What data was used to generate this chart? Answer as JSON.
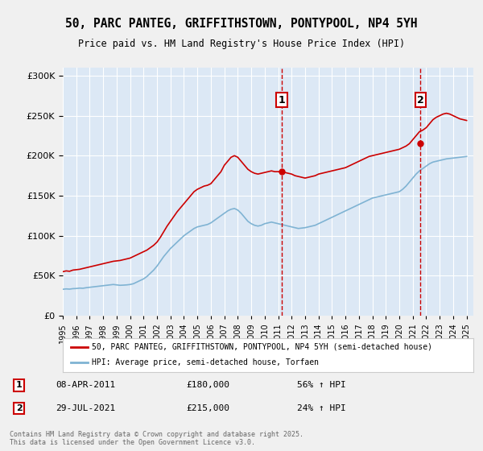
{
  "title": "50, PARC PANTEG, GRIFFITHSTOWN, PONTYPOOL, NP4 5YH",
  "subtitle": "Price paid vs. HM Land Registry's House Price Index (HPI)",
  "ylabel_ticks": [
    "£0",
    "£50K",
    "£100K",
    "£150K",
    "£200K",
    "£250K",
    "£300K"
  ],
  "ytick_values": [
    0,
    50000,
    100000,
    150000,
    200000,
    250000,
    300000
  ],
  "ylim": [
    0,
    310000
  ],
  "xlim_start": 1995,
  "xlim_end": 2025.5,
  "background_color": "#e8f0f8",
  "plot_bg_color": "#dce8f5",
  "grid_color": "#ffffff",
  "red_line_color": "#cc0000",
  "blue_line_color": "#7fb3d3",
  "marker1_date_idx": 16.25,
  "marker2_date_idx": 26.58,
  "marker1_value": 180000,
  "marker2_value": 215000,
  "annotation1_label": "1",
  "annotation2_label": "2",
  "annotation1_date": "08-APR-2011",
  "annotation2_date": "29-JUL-2021",
  "annotation1_pct": "56% ↑ HPI",
  "annotation2_pct": "24% ↑ HPI",
  "legend_red": "50, PARC PANTEG, GRIFFITHSTOWN, PONTYPOOL, NP4 5YH (semi-detached house)",
  "legend_blue": "HPI: Average price, semi-detached house, Torfaen",
  "footer": "Contains HM Land Registry data © Crown copyright and database right 2025.\nThis data is licensed under the Open Government Licence v3.0.",
  "red_data": [
    [
      1995.0,
      55000
    ],
    [
      1995.25,
      56000
    ],
    [
      1995.5,
      55500
    ],
    [
      1995.75,
      57000
    ],
    [
      1996.0,
      57500
    ],
    [
      1996.25,
      58000
    ],
    [
      1996.5,
      59000
    ],
    [
      1996.75,
      60000
    ],
    [
      1997.0,
      61000
    ],
    [
      1997.25,
      62000
    ],
    [
      1997.5,
      63000
    ],
    [
      1997.75,
      64000
    ],
    [
      1998.0,
      65000
    ],
    [
      1998.25,
      66000
    ],
    [
      1998.5,
      67000
    ],
    [
      1998.75,
      68000
    ],
    [
      1999.0,
      68500
    ],
    [
      1999.25,
      69000
    ],
    [
      1999.5,
      70000
    ],
    [
      1999.75,
      71000
    ],
    [
      2000.0,
      72000
    ],
    [
      2000.25,
      74000
    ],
    [
      2000.5,
      76000
    ],
    [
      2000.75,
      78000
    ],
    [
      2001.0,
      80000
    ],
    [
      2001.25,
      82000
    ],
    [
      2001.5,
      85000
    ],
    [
      2001.75,
      88000
    ],
    [
      2002.0,
      92000
    ],
    [
      2002.25,
      98000
    ],
    [
      2002.5,
      105000
    ],
    [
      2002.75,
      112000
    ],
    [
      2003.0,
      118000
    ],
    [
      2003.25,
      124000
    ],
    [
      2003.5,
      130000
    ],
    [
      2003.75,
      135000
    ],
    [
      2004.0,
      140000
    ],
    [
      2004.25,
      145000
    ],
    [
      2004.5,
      150000
    ],
    [
      2004.75,
      155000
    ],
    [
      2005.0,
      158000
    ],
    [
      2005.25,
      160000
    ],
    [
      2005.5,
      162000
    ],
    [
      2005.75,
      163000
    ],
    [
      2006.0,
      165000
    ],
    [
      2006.25,
      170000
    ],
    [
      2006.5,
      175000
    ],
    [
      2006.75,
      180000
    ],
    [
      2007.0,
      188000
    ],
    [
      2007.25,
      193000
    ],
    [
      2007.5,
      198000
    ],
    [
      2007.75,
      200000
    ],
    [
      2008.0,
      198000
    ],
    [
      2008.25,
      193000
    ],
    [
      2008.5,
      188000
    ],
    [
      2008.75,
      183000
    ],
    [
      2009.0,
      180000
    ],
    [
      2009.25,
      178000
    ],
    [
      2009.5,
      177000
    ],
    [
      2009.75,
      178000
    ],
    [
      2010.0,
      179000
    ],
    [
      2010.25,
      180000
    ],
    [
      2010.5,
      181000
    ],
    [
      2010.75,
      180000
    ],
    [
      2011.25,
      180000
    ],
    [
      2011.5,
      179000
    ],
    [
      2011.75,
      178000
    ],
    [
      2012.0,
      177000
    ],
    [
      2012.25,
      175000
    ],
    [
      2012.5,
      174000
    ],
    [
      2012.75,
      173000
    ],
    [
      2013.0,
      172000
    ],
    [
      2013.25,
      173000
    ],
    [
      2013.5,
      174000
    ],
    [
      2013.75,
      175000
    ],
    [
      2014.0,
      177000
    ],
    [
      2014.25,
      178000
    ],
    [
      2014.5,
      179000
    ],
    [
      2014.75,
      180000
    ],
    [
      2015.0,
      181000
    ],
    [
      2015.25,
      182000
    ],
    [
      2015.5,
      183000
    ],
    [
      2015.75,
      184000
    ],
    [
      2016.0,
      185000
    ],
    [
      2016.25,
      187000
    ],
    [
      2016.5,
      189000
    ],
    [
      2016.75,
      191000
    ],
    [
      2017.0,
      193000
    ],
    [
      2017.25,
      195000
    ],
    [
      2017.5,
      197000
    ],
    [
      2017.75,
      199000
    ],
    [
      2018.0,
      200000
    ],
    [
      2018.25,
      201000
    ],
    [
      2018.5,
      202000
    ],
    [
      2018.75,
      203000
    ],
    [
      2019.0,
      204000
    ],
    [
      2019.25,
      205000
    ],
    [
      2019.5,
      206000
    ],
    [
      2019.75,
      207000
    ],
    [
      2020.0,
      208000
    ],
    [
      2020.25,
      210000
    ],
    [
      2020.5,
      212000
    ],
    [
      2020.75,
      215000
    ],
    [
      2021.0,
      220000
    ],
    [
      2021.25,
      225000
    ],
    [
      2021.5,
      230000
    ],
    [
      2021.75,
      232000
    ],
    [
      2022.0,
      235000
    ],
    [
      2022.25,
      240000
    ],
    [
      2022.5,
      245000
    ],
    [
      2022.75,
      248000
    ],
    [
      2023.0,
      250000
    ],
    [
      2023.25,
      252000
    ],
    [
      2023.5,
      253000
    ],
    [
      2023.75,
      252000
    ],
    [
      2024.0,
      250000
    ],
    [
      2024.25,
      248000
    ],
    [
      2024.5,
      246000
    ],
    [
      2024.75,
      245000
    ],
    [
      2025.0,
      244000
    ]
  ],
  "blue_data": [
    [
      1995.0,
      33000
    ],
    [
      1995.25,
      33500
    ],
    [
      1995.5,
      33200
    ],
    [
      1995.75,
      33800
    ],
    [
      1996.0,
      34000
    ],
    [
      1996.25,
      34500
    ],
    [
      1996.5,
      34300
    ],
    [
      1996.75,
      35000
    ],
    [
      1997.0,
      35500
    ],
    [
      1997.25,
      36000
    ],
    [
      1997.5,
      36500
    ],
    [
      1997.75,
      37000
    ],
    [
      1998.0,
      37500
    ],
    [
      1998.25,
      38000
    ],
    [
      1998.5,
      38500
    ],
    [
      1998.75,
      39000
    ],
    [
      1999.0,
      38500
    ],
    [
      1999.25,
      38000
    ],
    [
      1999.5,
      38200
    ],
    [
      1999.75,
      38500
    ],
    [
      2000.0,
      39000
    ],
    [
      2000.25,
      40000
    ],
    [
      2000.5,
      42000
    ],
    [
      2000.75,
      44000
    ],
    [
      2001.0,
      46000
    ],
    [
      2001.25,
      49000
    ],
    [
      2001.5,
      53000
    ],
    [
      2001.75,
      57000
    ],
    [
      2002.0,
      62000
    ],
    [
      2002.25,
      68000
    ],
    [
      2002.5,
      74000
    ],
    [
      2002.75,
      79000
    ],
    [
      2003.0,
      84000
    ],
    [
      2003.25,
      88000
    ],
    [
      2003.5,
      92000
    ],
    [
      2003.75,
      96000
    ],
    [
      2004.0,
      100000
    ],
    [
      2004.25,
      103000
    ],
    [
      2004.5,
      106000
    ],
    [
      2004.75,
      109000
    ],
    [
      2005.0,
      111000
    ],
    [
      2005.25,
      112000
    ],
    [
      2005.5,
      113000
    ],
    [
      2005.75,
      114000
    ],
    [
      2006.0,
      116000
    ],
    [
      2006.25,
      119000
    ],
    [
      2006.5,
      122000
    ],
    [
      2006.75,
      125000
    ],
    [
      2007.0,
      128000
    ],
    [
      2007.25,
      131000
    ],
    [
      2007.5,
      133000
    ],
    [
      2007.75,
      134000
    ],
    [
      2008.0,
      132000
    ],
    [
      2008.25,
      128000
    ],
    [
      2008.5,
      123000
    ],
    [
      2008.75,
      118000
    ],
    [
      2009.0,
      115000
    ],
    [
      2009.25,
      113000
    ],
    [
      2009.5,
      112000
    ],
    [
      2009.75,
      113000
    ],
    [
      2010.0,
      115000
    ],
    [
      2010.25,
      116000
    ],
    [
      2010.5,
      117000
    ],
    [
      2010.75,
      116000
    ],
    [
      2011.0,
      115000
    ],
    [
      2011.25,
      114000
    ],
    [
      2011.5,
      113000
    ],
    [
      2011.75,
      112000
    ],
    [
      2012.0,
      111000
    ],
    [
      2012.25,
      110000
    ],
    [
      2012.5,
      109000
    ],
    [
      2012.75,
      109500
    ],
    [
      2013.0,
      110000
    ],
    [
      2013.25,
      111000
    ],
    [
      2013.5,
      112000
    ],
    [
      2013.75,
      113000
    ],
    [
      2014.0,
      115000
    ],
    [
      2014.25,
      117000
    ],
    [
      2014.5,
      119000
    ],
    [
      2014.75,
      121000
    ],
    [
      2015.0,
      123000
    ],
    [
      2015.25,
      125000
    ],
    [
      2015.5,
      127000
    ],
    [
      2015.75,
      129000
    ],
    [
      2016.0,
      131000
    ],
    [
      2016.25,
      133000
    ],
    [
      2016.5,
      135000
    ],
    [
      2016.75,
      137000
    ],
    [
      2017.0,
      139000
    ],
    [
      2017.25,
      141000
    ],
    [
      2017.5,
      143000
    ],
    [
      2017.75,
      145000
    ],
    [
      2018.0,
      147000
    ],
    [
      2018.25,
      148000
    ],
    [
      2018.5,
      149000
    ],
    [
      2018.75,
      150000
    ],
    [
      2019.0,
      151000
    ],
    [
      2019.25,
      152000
    ],
    [
      2019.5,
      153000
    ],
    [
      2019.75,
      154000
    ],
    [
      2020.0,
      155000
    ],
    [
      2020.25,
      158000
    ],
    [
      2020.5,
      162000
    ],
    [
      2020.75,
      167000
    ],
    [
      2021.0,
      172000
    ],
    [
      2021.25,
      177000
    ],
    [
      2021.5,
      181000
    ],
    [
      2021.75,
      184000
    ],
    [
      2022.0,
      187000
    ],
    [
      2022.25,
      190000
    ],
    [
      2022.5,
      192000
    ],
    [
      2022.75,
      193000
    ],
    [
      2023.0,
      194000
    ],
    [
      2023.25,
      195000
    ],
    [
      2023.5,
      196000
    ],
    [
      2023.75,
      196500
    ],
    [
      2024.0,
      197000
    ],
    [
      2024.25,
      197500
    ],
    [
      2024.5,
      198000
    ],
    [
      2024.75,
      198500
    ],
    [
      2025.0,
      199000
    ]
  ]
}
